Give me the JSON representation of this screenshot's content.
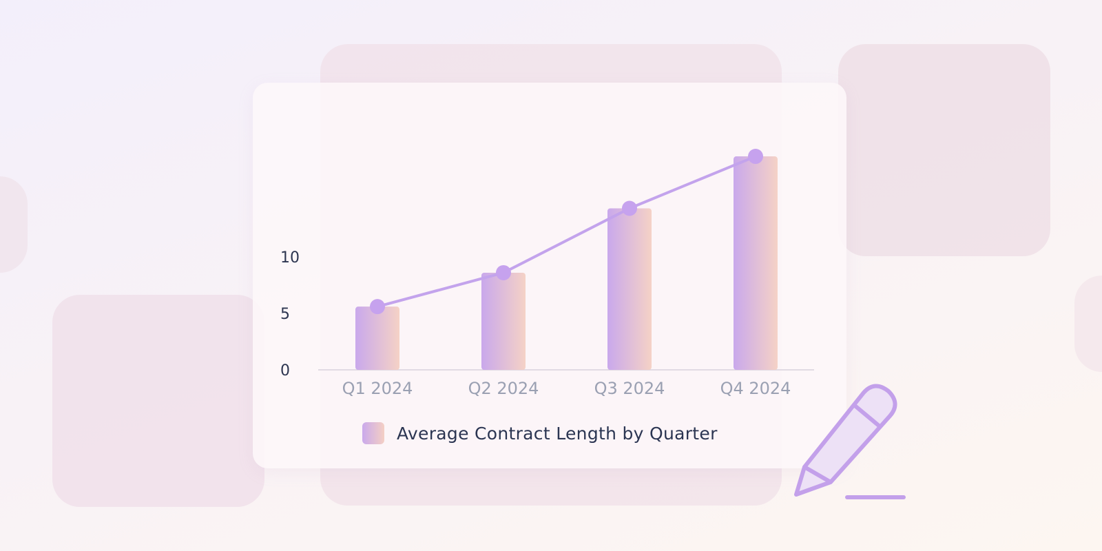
{
  "chart_data": {
    "type": "bar",
    "categories": [
      "Q1 2024",
      "Q2 2024",
      "Q3 2024",
      "Q4 2024"
    ],
    "values": [
      5.6,
      8.6,
      14.3,
      18.9
    ],
    "series": [
      {
        "name": "Average Contract Length by Quarter",
        "values": [
          5.6,
          8.6,
          14.3,
          18.9
        ]
      }
    ],
    "overlay_line": true,
    "yticks": [
      0,
      5,
      10
    ],
    "ylim": [
      0,
      20
    ],
    "title": "",
    "xlabel": "",
    "ylabel": "",
    "grid": false,
    "legend_position": "bottom-center",
    "colors": {
      "bar_start": "#c9a8ec",
      "bar_end": "#f5d2c6",
      "line": "#c3a3ec",
      "point": "#c6a2ee",
      "axis": "#d8d2dc"
    }
  },
  "legend": {
    "label": "Average Contract Length by Quarter"
  },
  "decorations": {
    "icon": "pencil-icon"
  }
}
